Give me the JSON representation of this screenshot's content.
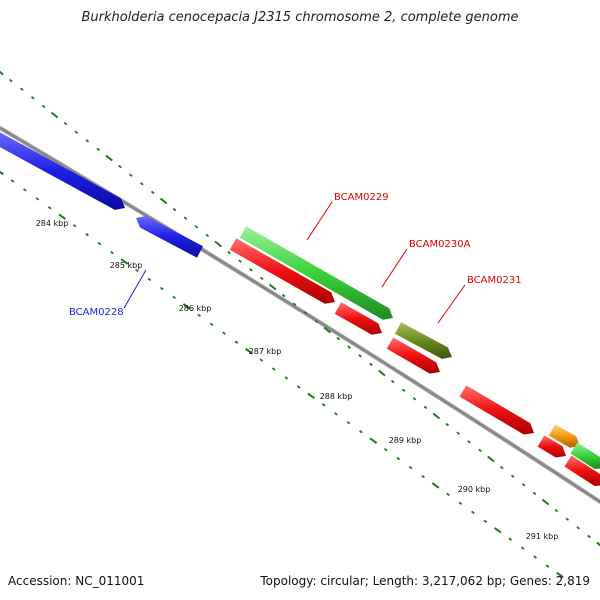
{
  "title": "Burkholderia cenocepacia J2315 chromosome 2, complete genome",
  "footer": {
    "accession": "Accession: NC_011001",
    "summary": "Topology: circular; Length: 3,217,062 bp; Genes: 2,819"
  },
  "colors": {
    "backbone": "#888888",
    "dots": "#1a7a1a",
    "blue": "#1f1fe6",
    "red": "#f01010",
    "green": "#3ad23a",
    "olive": "#6b8a1e",
    "orange": "#f59a10"
  },
  "tick_labels": [
    "284 kbp",
    "285 kbp",
    "286 kbp",
    "287 kbp",
    "288 kbp",
    "289 kbp",
    "290 kbp",
    "291 kbp"
  ],
  "gene_labels": [
    {
      "text": "BCAM0228",
      "color": "#1f1fe6"
    },
    {
      "text": "BCAM0229",
      "color": "#e00000"
    },
    {
      "text": "BCAM0230A",
      "color": "#e00000"
    },
    {
      "text": "BCAM0231",
      "color": "#e00000"
    }
  ]
}
